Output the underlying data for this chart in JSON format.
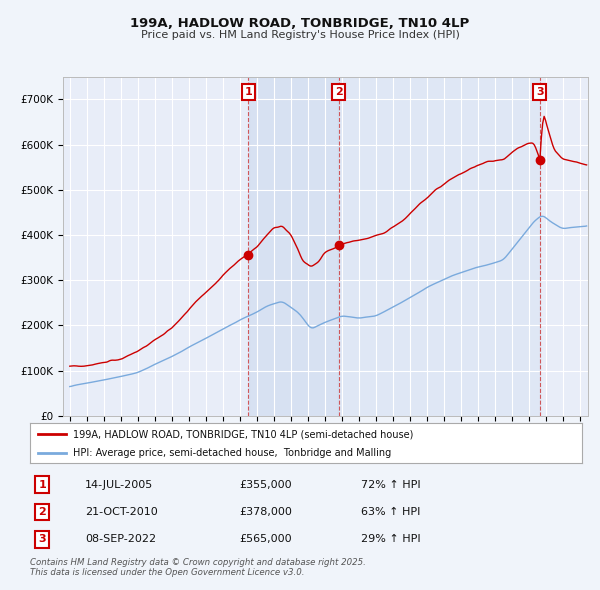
{
  "title": "199A, HADLOW ROAD, TONBRIDGE, TN10 4LP",
  "subtitle": "Price paid vs. HM Land Registry's House Price Index (HPI)",
  "ylim": [
    0,
    750000
  ],
  "yticks": [
    0,
    100000,
    200000,
    300000,
    400000,
    500000,
    600000,
    700000
  ],
  "ytick_labels": [
    "£0",
    "£100K",
    "£200K",
    "£300K",
    "£400K",
    "£500K",
    "£600K",
    "£700K"
  ],
  "background_color": "#f0f4fa",
  "plot_bg_color": "#e8edf8",
  "grid_color": "#ffffff",
  "line1_color": "#cc0000",
  "line2_color": "#7aaadd",
  "sale_color": "#cc0000",
  "vline_color": "#cc3333",
  "shade_color": "#d0dcf0",
  "legend_label1": "199A, HADLOW ROAD, TONBRIDGE, TN10 4LP (semi-detached house)",
  "legend_label2": "HPI: Average price, semi-detached house,  Tonbridge and Malling",
  "sale1_date": 2005.54,
  "sale1_price": 355000,
  "sale2_date": 2010.8,
  "sale2_price": 378000,
  "sale3_date": 2022.69,
  "sale3_price": 565000,
  "footnote": "Contains HM Land Registry data © Crown copyright and database right 2025.\nThis data is licensed under the Open Government Licence v3.0.",
  "table_entries": [
    {
      "num": "1",
      "date": "14-JUL-2005",
      "price": "£355,000",
      "change": "72% ↑ HPI"
    },
    {
      "num": "2",
      "date": "21-OCT-2010",
      "price": "£378,000",
      "change": "63% ↑ HPI"
    },
    {
      "num": "3",
      "date": "08-SEP-2022",
      "price": "£565,000",
      "change": "29% ↑ HPI"
    }
  ]
}
